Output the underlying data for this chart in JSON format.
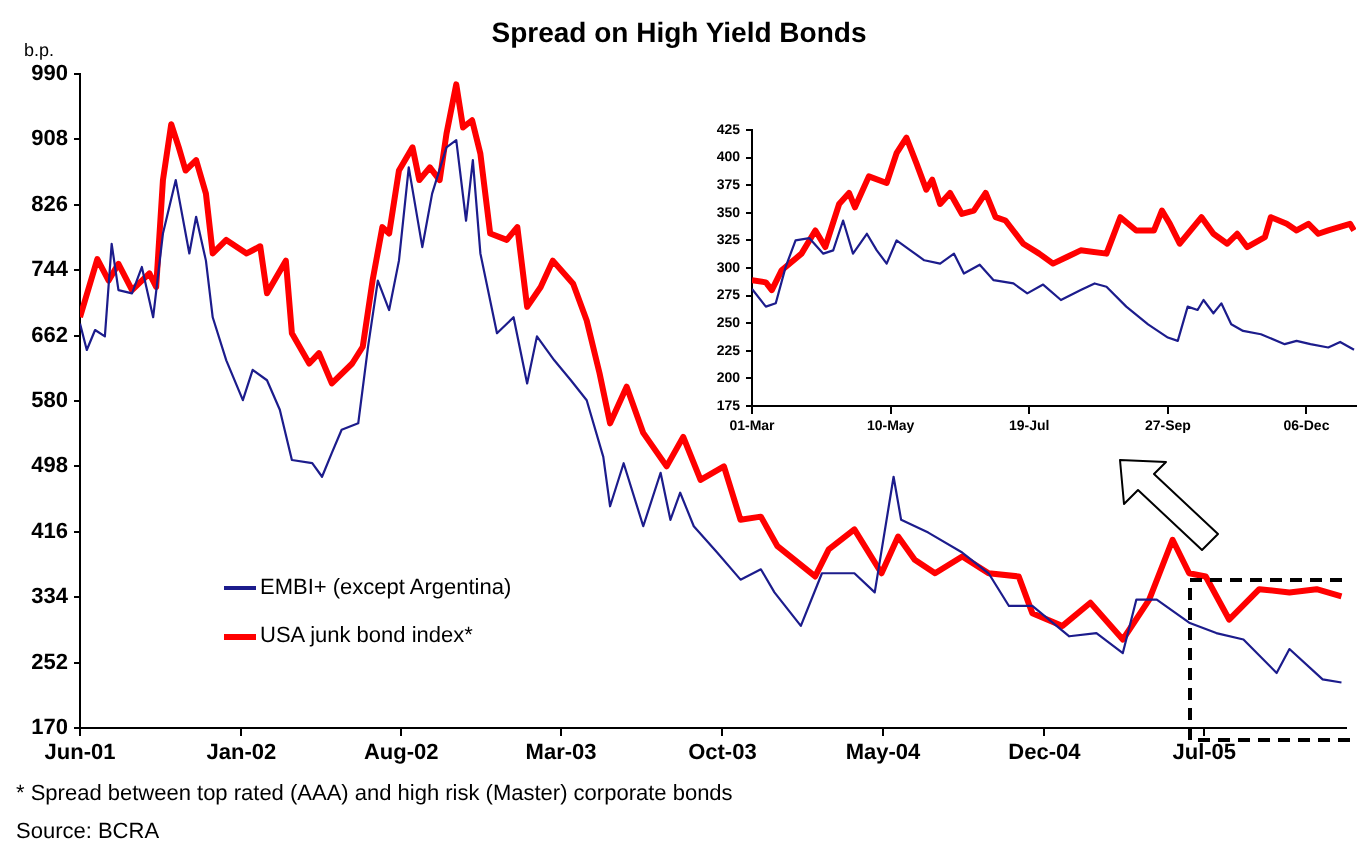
{
  "chart_data": [
    {
      "type": "line",
      "title": "Spread on High Yield Bonds",
      "ylabel": "b.p.",
      "legend": "bottom left",
      "marker": "none",
      "xlim": [
        "2001-06-01",
        "2006-01-05"
      ],
      "xticks": [
        {
          "value": "2001-06-01",
          "label": "Jun-01"
        },
        {
          "value": "2002-01-01",
          "label": "Jan-02"
        },
        {
          "value": "2002-08-01",
          "label": "Aug-02"
        },
        {
          "value": "2003-03-01",
          "label": "Mar-03"
        },
        {
          "value": "2003-10-01",
          "label": "Oct-03"
        },
        {
          "value": "2004-05-01",
          "label": "May-04"
        },
        {
          "value": "2004-12-01",
          "label": "Dec-04"
        },
        {
          "value": "2005-07-01",
          "label": "Jul-05"
        }
      ],
      "ylim": [
        170,
        990
      ],
      "yticks": [
        170,
        252,
        334,
        416,
        498,
        580,
        662,
        744,
        826,
        908,
        990
      ],
      "annotations": [
        "* Spread between top rated (AAA) and high risk (Master) corporate bonds",
        "Source: BCRA"
      ],
      "series": [
        {
          "name": "EMBI+ (except Argentina)",
          "color": "#1c1c8c",
          "x": [
            "2001-06-01",
            "2001-06-10",
            "2001-06-21",
            "2001-07-04",
            "2001-07-13",
            "2001-07-22",
            "2001-08-09",
            "2001-08-22",
            "2001-09-06",
            "2001-09-19",
            "2001-10-06",
            "2001-10-24",
            "2001-11-02",
            "2001-11-15",
            "2001-11-24",
            "2001-12-12",
            "2002-01-03",
            "2002-01-16",
            "2002-02-04",
            "2002-02-21",
            "2002-03-09",
            "2002-04-05",
            "2002-04-18",
            "2002-05-01",
            "2002-05-14",
            "2002-06-05",
            "2002-06-18",
            "2002-07-01",
            "2002-07-16",
            "2002-07-29",
            "2002-08-11",
            "2002-08-29",
            "2002-09-11",
            "2002-09-30",
            "2002-10-13",
            "2002-10-26",
            "2002-11-04",
            "2002-11-14",
            "2002-12-06",
            "2002-12-28",
            "2003-01-15",
            "2003-01-28",
            "2003-02-20",
            "2003-03-14",
            "2003-04-04",
            "2003-04-26",
            "2003-05-05",
            "2003-05-23",
            "2003-06-18",
            "2003-07-11",
            "2003-07-24",
            "2003-08-06",
            "2003-08-24",
            "2003-09-24",
            "2003-10-25",
            "2003-11-21",
            "2003-12-09",
            "2004-01-13",
            "2004-02-10",
            "2004-03-24",
            "2004-04-20",
            "2004-05-15",
            "2004-05-25",
            "2004-06-30",
            "2004-08-14",
            "2004-09-18",
            "2004-10-15",
            "2004-11-15",
            "2005-01-03",
            "2005-02-08",
            "2005-03-15",
            "2005-04-02",
            "2005-04-29",
            "2005-06-11",
            "2005-07-17",
            "2005-08-22",
            "2005-10-05",
            "2005-10-22",
            "2005-12-05",
            "2005-12-30"
          ],
          "values": [
            677,
            644,
            669,
            661,
            777,
            719,
            715,
            748,
            685,
            790,
            857,
            765,
            811,
            756,
            685,
            631,
            581,
            619,
            606,
            569,
            506,
            502,
            485,
            515,
            544,
            552,
            648,
            731,
            694,
            756,
            873,
            773,
            840,
            898,
            907,
            806,
            882,
            765,
            665,
            685,
            602,
            661,
            631,
            606,
            581,
            510,
            448,
            502,
            423,
            490,
            431,
            465,
            423,
            390,
            356,
            369,
            340,
            298,
            364,
            364,
            340,
            485,
            431,
            415,
            390,
            364,
            323,
            323,
            285,
            289,
            264,
            331,
            331,
            302,
            289,
            281,
            239,
            269,
            231,
            227
          ]
        },
        {
          "name": "USA junk bond index*",
          "color": "#ff0000",
          "x": [
            "2001-06-01",
            "2001-06-24",
            "2001-07-09",
            "2001-07-22",
            "2001-08-09",
            "2001-09-01",
            "2001-09-10",
            "2001-09-19",
            "2001-09-30",
            "2001-10-10",
            "2001-10-19",
            "2001-11-02",
            "2001-11-15",
            "2001-11-24",
            "2001-12-12",
            "2002-01-08",
            "2002-01-26",
            "2002-02-04",
            "2002-03-01",
            "2002-03-09",
            "2002-04-01",
            "2002-04-14",
            "2002-05-01",
            "2002-05-28",
            "2002-06-11",
            "2002-06-24",
            "2002-07-07",
            "2002-07-16",
            "2002-07-29",
            "2002-08-16",
            "2002-08-25",
            "2002-09-08",
            "2002-09-21",
            "2002-09-30",
            "2002-10-13",
            "2002-10-22",
            "2002-11-03",
            "2002-11-14",
            "2002-11-27",
            "2002-12-19",
            "2003-01-02",
            "2003-01-15",
            "2003-02-02",
            "2003-02-18",
            "2003-03-17",
            "2003-04-04",
            "2003-04-21",
            "2003-05-05",
            "2003-05-27",
            "2003-06-18",
            "2003-07-19",
            "2003-08-10",
            "2003-09-02",
            "2003-10-03",
            "2003-10-25",
            "2003-11-21",
            "2003-12-13",
            "2004-02-01",
            "2004-02-19",
            "2004-03-24",
            "2004-04-29",
            "2004-05-21",
            "2004-06-12",
            "2004-07-09",
            "2004-08-14",
            "2004-09-18",
            "2004-10-28",
            "2004-11-15",
            "2004-12-25",
            "2005-01-31",
            "2005-03-15",
            "2005-04-19",
            "2005-05-20",
            "2005-06-11",
            "2005-07-03",
            "2005-08-03",
            "2005-09-12",
            "2005-10-22",
            "2005-11-27",
            "2005-12-30"
          ],
          "values": [
            685,
            758,
            731,
            752,
            719,
            740,
            723,
            857,
            927,
            898,
            869,
            882,
            840,
            765,
            782,
            765,
            774,
            715,
            756,
            665,
            627,
            640,
            602,
            627,
            648,
            731,
            798,
            790,
            869,
            898,
            857,
            873,
            857,
            915,
            977,
            923,
            932,
            890,
            790,
            782,
            798,
            698,
            723,
            756,
            727,
            681,
            615,
            552,
            598,
            540,
            498,
            535,
            481,
            498,
            431,
            435,
            398,
            360,
            394,
            419,
            364,
            410,
            381,
            364,
            385,
            364,
            360,
            314,
            298,
            327,
            281,
            331,
            406,
            364,
            360,
            306,
            344,
            340,
            344,
            335
          ]
        }
      ]
    },
    {
      "type": "line",
      "marker": "none",
      "xlim": [
        "--03-01",
        "--12-31"
      ],
      "xticks": [
        {
          "value": "--03-01",
          "label": "01-Mar"
        },
        {
          "value": "--05-10",
          "label": "10-May"
        },
        {
          "value": "--07-19",
          "label": "19-Jul"
        },
        {
          "value": "--09-27",
          "label": "27-Sep"
        },
        {
          "value": "--12-06",
          "label": "06-Dec"
        }
      ],
      "ylim": [
        175,
        425
      ],
      "yticks": [
        175,
        200,
        225,
        250,
        275,
        300,
        325,
        350,
        375,
        400,
        425
      ],
      "series": [
        {
          "color": "#1c1c8c",
          "x": [
            "--03-01",
            "--03-08",
            "--03-13",
            "--03-18",
            "--03-23",
            "--03-30",
            "--04-06",
            "--04-11",
            "--04-16",
            "--04-21",
            "--04-28",
            "--05-03",
            "--05-08",
            "--05-13",
            "--05-20",
            "--05-27",
            "--06-04",
            "--06-11",
            "--06-16",
            "--06-24",
            "--07-01",
            "--07-11",
            "--07-18",
            "--07-26",
            "--08-04",
            "--08-14",
            "--08-21",
            "--08-27",
            "--09-06",
            "--09-17",
            "--09-27",
            "--10-02",
            "--10-07",
            "--10-12",
            "--10-15",
            "--10-20",
            "--10-24",
            "--10-29",
            "--11-04",
            "--11-13",
            "--11-25",
            "--12-01",
            "--12-08",
            "--12-17",
            "--12-23",
            "--12-30"
          ],
          "values": [
            281,
            265,
            268,
            301,
            325,
            327,
            313,
            316,
            343,
            313,
            331,
            316,
            304,
            325,
            316,
            307,
            304,
            313,
            295,
            303,
            289,
            286,
            277,
            285,
            271,
            280,
            286,
            283,
            265,
            249,
            237,
            234,
            265,
            262,
            271,
            259,
            268,
            249,
            243,
            240,
            231,
            234,
            231,
            228,
            233,
            226
          ]
        },
        {
          "color": "#ff0000",
          "x": [
            "--03-01",
            "--03-08",
            "--03-11",
            "--03-16",
            "--03-26",
            "--04-02",
            "--04-07",
            "--04-14",
            "--04-19",
            "--04-22",
            "--04-29",
            "--05-08",
            "--05-13",
            "--05-18",
            "--05-23",
            "--05-28",
            "--05-31",
            "--06-04",
            "--06-09",
            "--06-15",
            "--06-21",
            "--06-27",
            "--07-02",
            "--07-07",
            "--07-16",
            "--07-24",
            "--07-31",
            "--08-07",
            "--08-14",
            "--08-27",
            "--09-03",
            "--09-11",
            "--09-20",
            "--09-24",
            "--09-28",
            "--10-03",
            "--10-14",
            "--10-20",
            "--10-27",
            "--11-01",
            "--11-06",
            "--11-15",
            "--11-18",
            "--11-26",
            "--12-01",
            "--12-07",
            "--12-12",
            "--12-17",
            "--12-28",
            "--12-30"
          ],
          "values": [
            289,
            287,
            280,
            298,
            313,
            334,
            319,
            358,
            368,
            355,
            383,
            377,
            404,
            418,
            395,
            371,
            380,
            358,
            368,
            349,
            352,
            368,
            346,
            343,
            322,
            313,
            304,
            310,
            316,
            313,
            346,
            334,
            334,
            352,
            340,
            322,
            346,
            331,
            322,
            331,
            319,
            328,
            346,
            340,
            334,
            340,
            331,
            334,
            340,
            334
          ]
        }
      ]
    }
  ]
}
